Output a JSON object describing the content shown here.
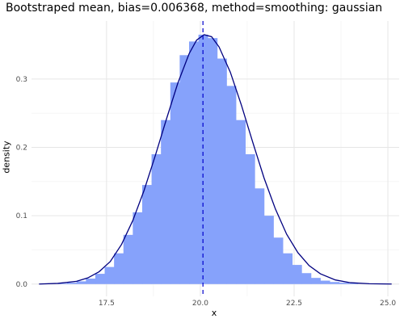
{
  "chart_data": {
    "type": "histogram",
    "title": "Bootstraped mean, bias=0.006368, method=smoothing: gaussian",
    "xlabel": "x",
    "ylabel": "density",
    "xlim": [
      15.5,
      25.3
    ],
    "ylim": [
      -0.018,
      0.385
    ],
    "x_ticks": [
      17.5,
      20.0,
      22.5,
      25.0
    ],
    "x_tick_labels": [
      "17.5",
      "20.0",
      "22.5",
      "25.0"
    ],
    "y_ticks": [
      0.0,
      0.1,
      0.2,
      0.3
    ],
    "y_tick_labels": [
      "0.0",
      "0.1",
      "0.2",
      "0.3"
    ],
    "grid": true,
    "bar_color": "#86a2fb",
    "line_color": "#000080",
    "bin_width": 0.25,
    "histogram": {
      "bin_starts": [
        16.2,
        16.45,
        16.7,
        16.95,
        17.2,
        17.45,
        17.7,
        17.95,
        18.2,
        18.45,
        18.7,
        18.95,
        19.2,
        19.45,
        19.7,
        19.95,
        20.2,
        20.45,
        20.7,
        20.95,
        21.2,
        21.45,
        21.7,
        21.95,
        22.2,
        22.45,
        22.7,
        22.95,
        23.2,
        23.45,
        23.7,
        23.95
      ],
      "density": [
        0.001,
        0.002,
        0.004,
        0.008,
        0.015,
        0.025,
        0.045,
        0.072,
        0.105,
        0.145,
        0.19,
        0.24,
        0.295,
        0.335,
        0.355,
        0.365,
        0.36,
        0.33,
        0.29,
        0.24,
        0.19,
        0.14,
        0.1,
        0.068,
        0.045,
        0.028,
        0.016,
        0.009,
        0.005,
        0.003,
        0.002,
        0.001
      ]
    },
    "density_curve": {
      "x": [
        15.7,
        16.2,
        16.7,
        17.0,
        17.3,
        17.6,
        17.9,
        18.2,
        18.5,
        18.8,
        19.1,
        19.4,
        19.7,
        19.9,
        20.1,
        20.3,
        20.5,
        20.8,
        21.1,
        21.4,
        21.7,
        22.0,
        22.3,
        22.6,
        22.9,
        23.2,
        23.6,
        24.0,
        24.5,
        25.1
      ],
      "y": [
        0.0,
        0.001,
        0.004,
        0.009,
        0.018,
        0.033,
        0.058,
        0.093,
        0.137,
        0.188,
        0.242,
        0.294,
        0.337,
        0.357,
        0.365,
        0.362,
        0.347,
        0.31,
        0.261,
        0.207,
        0.155,
        0.11,
        0.073,
        0.046,
        0.027,
        0.015,
        0.006,
        0.002,
        0.0005,
        0.0
      ]
    },
    "vline": {
      "x": 20.07,
      "style": "dashed",
      "color": "#0000cc"
    }
  }
}
